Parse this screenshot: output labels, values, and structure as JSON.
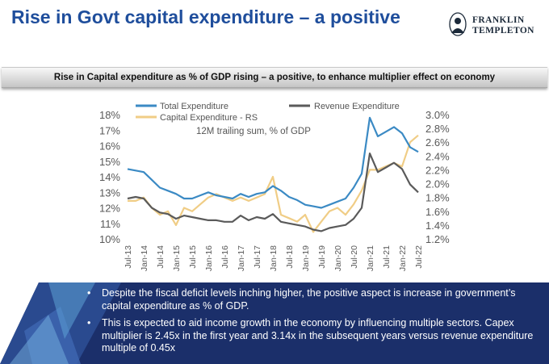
{
  "slide": {
    "title": "Rise in Govt capital expenditure – a positive",
    "logo": {
      "line1": "FRANKLIN",
      "line2": "TEMPLETON"
    },
    "banner": "Rise in Capital expenditure as % of GDP rising – a positive, to enhance multiplier effect on economy",
    "bullets": [
      "Despite the fiscal deficit levels inching higher, the positive aspect is increase in government’s capital expenditure as % of GDP.",
      "This is expected to aid income growth in the economy by influencing multiple sectors. Capex multiplier is 2.45x in the first year and 3.14x in the subsequent years versus revenue expenditure multiple of 0.45x"
    ],
    "bullet_symbol": "•",
    "colors": {
      "title": "#1f4e9c",
      "panel": "#1b2f6a",
      "total": "#3b8ac4",
      "revenue": "#5a5a5a",
      "capex": "#f0cd86"
    }
  },
  "chart_data": {
    "type": "line",
    "subtitle": "12M trailing sum, % of GDP",
    "x": [
      "Jul-13",
      "Oct-13",
      "Jan-14",
      "Apr-14",
      "Jul-14",
      "Oct-14",
      "Jan-15",
      "Apr-15",
      "Jul-15",
      "Oct-15",
      "Jan-16",
      "Apr-16",
      "Jul-16",
      "Oct-16",
      "Jan-17",
      "Apr-17",
      "Jul-17",
      "Oct-17",
      "Jan-18",
      "Apr-18",
      "Jul-18",
      "Oct-18",
      "Jan-19",
      "Apr-19",
      "Jul-19",
      "Oct-19",
      "Jan-20",
      "Apr-20",
      "Jul-20",
      "Oct-20",
      "Jan-21",
      "Apr-21",
      "Jul-21",
      "Oct-21",
      "Jan-22",
      "Apr-22",
      "Jul-22"
    ],
    "xticks": [
      "Jul-13",
      "Jan-14",
      "Jul-14",
      "Jan-15",
      "Jul-15",
      "Jan-16",
      "Jul-16",
      "Jan-17",
      "Jul-17",
      "Jan-18",
      "Jul-18",
      "Jan-19",
      "Jul-19",
      "Jan-20",
      "Jul-20",
      "Jan-21",
      "Jul-21",
      "Jan-22",
      "Jul-22"
    ],
    "left_axis": {
      "ticks": [
        "18%",
        "17%",
        "16%",
        "15%",
        "14%",
        "13%",
        "12%",
        "11%",
        "10%"
      ],
      "ylim": [
        10,
        18
      ]
    },
    "right_axis": {
      "ticks": [
        "3.0%",
        "2.8%",
        "2.6%",
        "2.4%",
        "2.2%",
        "2.0%",
        "1.8%",
        "1.6%",
        "1.4%",
        "1.2%"
      ],
      "ylim": [
        1.2,
        3.0
      ]
    },
    "legend": {
      "position": "top",
      "entries": [
        "Total Expenditure",
        "Revenue Expenditure",
        "Capital Expenditure - RS"
      ]
    },
    "series": [
      {
        "name": "Total Expenditure",
        "axis": "left",
        "values": [
          14.5,
          14.4,
          14.3,
          13.8,
          13.3,
          13.1,
          12.9,
          12.6,
          12.6,
          12.8,
          13.0,
          12.8,
          12.7,
          12.6,
          12.9,
          12.7,
          12.9,
          13.0,
          13.4,
          13.1,
          12.7,
          12.5,
          12.2,
          12.1,
          12.0,
          12.2,
          12.4,
          12.6,
          13.3,
          14.2,
          17.8,
          16.6,
          16.9,
          17.2,
          16.8,
          15.9,
          15.6
        ]
      },
      {
        "name": "Revenue Expenditure",
        "axis": "left",
        "values": [
          12.6,
          12.7,
          12.6,
          12.0,
          11.7,
          11.6,
          11.3,
          11.5,
          11.4,
          11.3,
          11.2,
          11.2,
          11.1,
          11.1,
          11.5,
          11.2,
          11.4,
          11.3,
          11.6,
          11.1,
          11.0,
          10.9,
          10.8,
          10.6,
          10.5,
          10.7,
          10.8,
          10.9,
          11.3,
          12.0,
          15.5,
          14.3,
          14.6,
          14.9,
          14.5,
          13.5,
          13.0
        ]
      },
      {
        "name": "Capital Expenditure - RS",
        "axis": "right",
        "values": [
          1.75,
          1.75,
          1.8,
          1.65,
          1.55,
          1.6,
          1.4,
          1.65,
          1.6,
          1.7,
          1.8,
          1.85,
          1.8,
          1.75,
          1.8,
          1.75,
          1.8,
          1.85,
          2.1,
          1.55,
          1.5,
          1.45,
          1.55,
          1.3,
          1.45,
          1.6,
          1.65,
          1.55,
          1.7,
          1.9,
          2.2,
          2.2,
          2.25,
          2.3,
          2.25,
          2.6,
          2.7
        ]
      }
    ]
  }
}
